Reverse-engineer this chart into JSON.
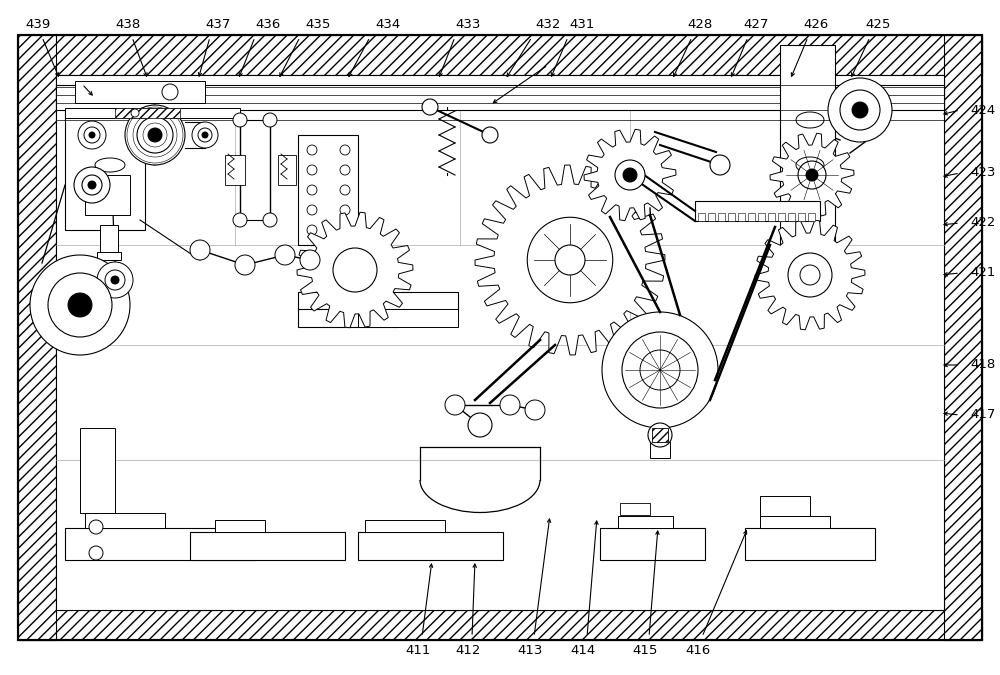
{
  "fig_width": 10.0,
  "fig_height": 6.75,
  "dpi": 100,
  "bg_color": "#ffffff"
}
